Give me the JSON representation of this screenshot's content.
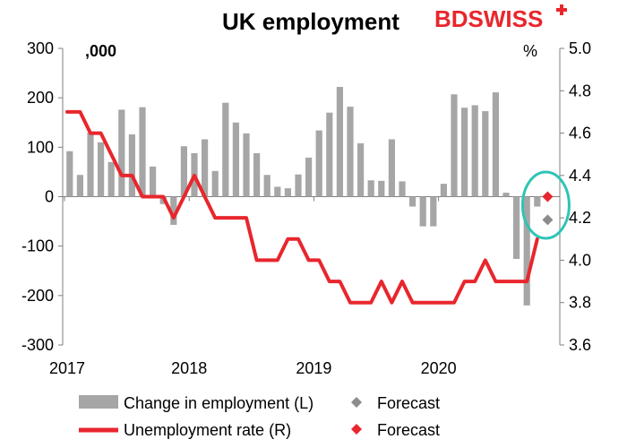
{
  "chart_data": {
    "type": "bar+line",
    "title": "UK employment",
    "logo": "BDSWISS",
    "left_unit": ",000",
    "right_unit": "%",
    "left_axis": {
      "min": -300,
      "max": 300,
      "ticks": [
        300,
        200,
        100,
        0,
        -100,
        -200,
        -300
      ]
    },
    "right_axis": {
      "min": 3.6,
      "max": 5.0,
      "ticks": [
        "5.0",
        "4.8",
        "4.6",
        "4.4",
        "4.2",
        "4.0",
        "3.8",
        "3.6"
      ]
    },
    "x_tick_labels": [
      "2017",
      "2018",
      "2019",
      "2020"
    ],
    "series": [
      {
        "name": "Change in employment (L)",
        "type": "bar",
        "color": "#a6a6a6",
        "values": [
          92,
          44,
          130,
          110,
          70,
          176,
          126,
          181,
          61,
          -15,
          -57,
          102,
          88,
          116,
          52,
          190,
          150,
          128,
          88,
          44,
          20,
          17,
          45,
          79,
          134,
          170,
          222,
          182,
          108,
          33,
          32,
          116,
          31,
          -20,
          -60,
          -60,
          26,
          207,
          180,
          185,
          173,
          211,
          8,
          -126,
          -220,
          -20
        ]
      },
      {
        "name": "Unemployment rate (R)",
        "type": "line",
        "color": "#e8262d",
        "values": [
          4.7,
          4.7,
          4.6,
          4.6,
          4.5,
          4.4,
          4.4,
          4.3,
          4.3,
          4.3,
          4.2,
          4.3,
          4.4,
          4.3,
          4.2,
          4.2,
          4.2,
          4.2,
          4.0,
          4.0,
          4.0,
          4.1,
          4.1,
          4.0,
          4.0,
          3.9,
          3.9,
          3.8,
          3.8,
          3.8,
          3.9,
          3.8,
          3.9,
          3.8,
          3.8,
          3.8,
          3.8,
          3.8,
          3.9,
          3.9,
          4.0,
          3.9,
          3.9,
          3.9,
          3.9,
          4.1
        ]
      }
    ],
    "forecasts": [
      {
        "name": "Forecast",
        "series": "Change in employment (L)",
        "value": -47,
        "color": "#8c8c8c"
      },
      {
        "name": "Forecast",
        "series": "Unemployment rate (R)",
        "value": 4.3,
        "color": "#e8262d"
      }
    ],
    "highlight_color": "#2ec4b6"
  }
}
